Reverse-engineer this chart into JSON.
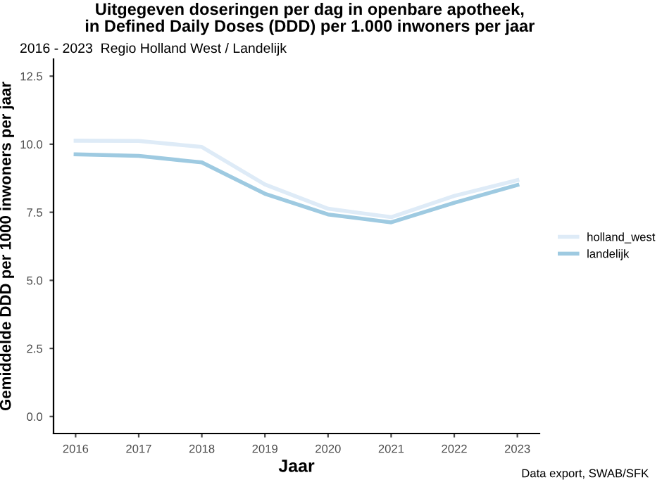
{
  "chart_data": {
    "type": "line",
    "title": "Uitgegeven doseringen per dag in openbare apotheek,\nin Defined Daily Doses (DDD) per 1.000 inwoners per jaar",
    "subtitle": "2016 - 2023  Regio Holland West / Landelijk",
    "xlabel": "Jaar",
    "ylabel": "Gemiddelde DDD per 1000 inwoners per jaar",
    "x": [
      2016,
      2017,
      2018,
      2019,
      2020,
      2021,
      2022,
      2023
    ],
    "series": [
      {
        "name": "holland_west",
        "color": "#deebf7",
        "values": [
          10.13,
          10.12,
          9.9,
          8.52,
          7.63,
          7.32,
          8.1,
          8.68
        ]
      },
      {
        "name": "landelijk",
        "color": "#9ecae1",
        "values": [
          9.63,
          9.57,
          9.33,
          8.18,
          7.42,
          7.13,
          7.85,
          8.5
        ]
      }
    ],
    "xlim": [
      2015.65,
      2023.35
    ],
    "xticks": [
      2016,
      2017,
      2018,
      2019,
      2020,
      2021,
      2022,
      2023
    ],
    "ylim": [
      -0.625,
      13.125
    ],
    "yticks": [
      {
        "value": 0,
        "label": "0.0"
      },
      2.5,
      {
        "value": 5,
        "label": "5.0"
      },
      7.5,
      {
        "value": 10,
        "label": "10.0"
      },
      12.5
    ],
    "grid": false,
    "legend": "right",
    "marker": "none",
    "line_style": "solid",
    "annotations": [
      "Data export, SWAB/SFK"
    ]
  }
}
